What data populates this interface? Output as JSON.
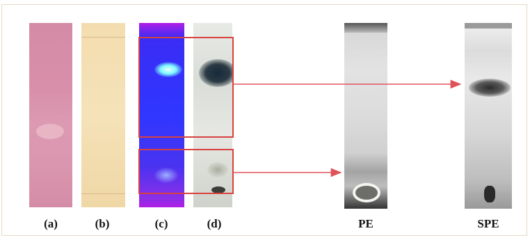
{
  "panels": [
    {
      "id": "a",
      "label": "(a)"
    },
    {
      "id": "b",
      "label": "(b)"
    },
    {
      "id": "c",
      "label": "(c)"
    },
    {
      "id": "d",
      "label": "(d)"
    },
    {
      "id": "pe",
      "label": "PE"
    },
    {
      "id": "spe",
      "label": "SPE"
    }
  ],
  "colors": {
    "frame": "#e7d8c5",
    "highlight_box": "#d9413f",
    "arrow": "#e0525a"
  }
}
